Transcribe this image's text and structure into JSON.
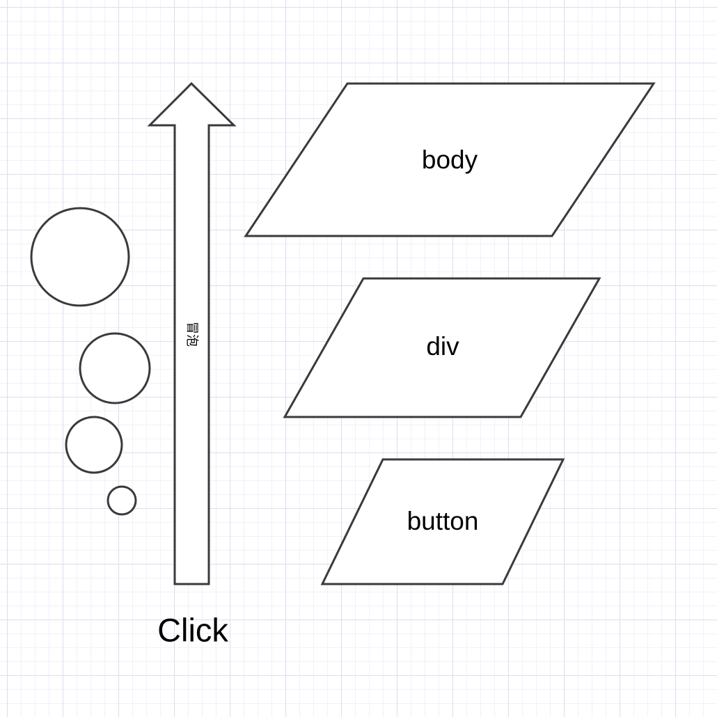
{
  "diagram": {
    "layers": [
      {
        "id": "body",
        "label": "body"
      },
      {
        "id": "div",
        "label": "div"
      },
      {
        "id": "button",
        "label": "button"
      }
    ],
    "arrow": {
      "label": "冒泡",
      "direction": "up"
    },
    "trigger": {
      "label": "Click"
    },
    "bubbles": {
      "count": 4
    }
  }
}
